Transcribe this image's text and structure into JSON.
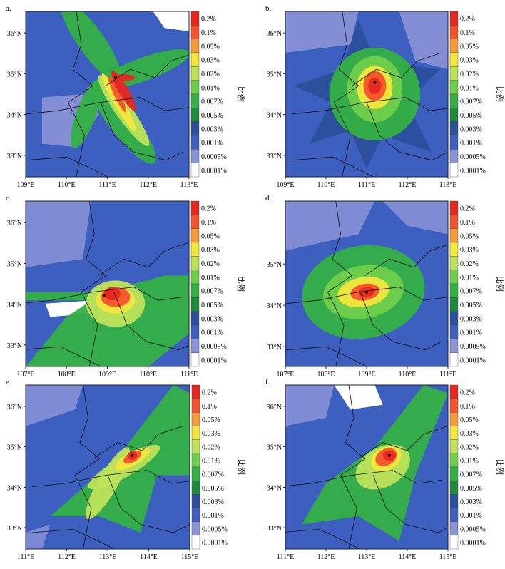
{
  "colorbar": {
    "title": "比例",
    "levels": [
      "0.2%",
      "0.1%",
      "0.05%",
      "0.03%",
      "0.02%",
      "0.01%",
      "0.007%",
      "0.005%",
      "0.003%",
      "0.001%",
      "0.0005%",
      "0.0001%"
    ],
    "colors": [
      "#e8261f",
      "#f3532c",
      "#f79a3a",
      "#f3e63c",
      "#bde15a",
      "#6fcf4a",
      "#35b045",
      "#1e8a3a",
      "#2b4f9a",
      "#3c5fc0",
      "#8b94d6",
      "#ffffff"
    ]
  },
  "panels": [
    {
      "label": "a.",
      "xticks": [
        "109°E",
        "110°E",
        "111°E",
        "112°E",
        "113°E"
      ],
      "yticks": [
        "36°N",
        "35°N",
        "34°N",
        "33°N"
      ],
      "source": [
        0.55,
        0.4
      ],
      "plume": "cross"
    },
    {
      "label": "b.",
      "xticks": [
        "109°E",
        "110°E",
        "111°E",
        "112°E",
        "113°E"
      ],
      "yticks": [
        "36°N",
        "35°N",
        "34°N",
        "33°N"
      ],
      "source": [
        0.55,
        0.43
      ],
      "plume": "star"
    },
    {
      "label": "c.",
      "xticks": [
        "107°E",
        "108°E",
        "109°E",
        "110°E",
        "111°E"
      ],
      "yticks": [
        "36°N",
        "35°N",
        "34°N",
        "33°N"
      ],
      "source": [
        0.48,
        0.57
      ],
      "plume": "fan"
    },
    {
      "label": "d.",
      "xticks": [
        "107°E",
        "108°E",
        "109°E",
        "110°E",
        "111°E"
      ],
      "yticks": [
        "35°N",
        "34°N",
        "33°N"
      ],
      "source": [
        0.5,
        0.55
      ],
      "plume": "blob"
    },
    {
      "label": "e.",
      "xticks": [
        "111°E",
        "112°E",
        "113°E",
        "114°E",
        "115°E"
      ],
      "yticks": [
        "36°N",
        "35°N",
        "34°N",
        "33°N"
      ],
      "source": [
        0.65,
        0.43
      ],
      "plume": "rays"
    },
    {
      "label": "f.",
      "xticks": [
        "111°E",
        "112°E",
        "113°E",
        "114°E",
        "115°E"
      ],
      "yticks": [
        "36°N",
        "35°N",
        "34°N",
        "33°N"
      ],
      "source": [
        0.64,
        0.43
      ],
      "plume": "wedge"
    }
  ]
}
